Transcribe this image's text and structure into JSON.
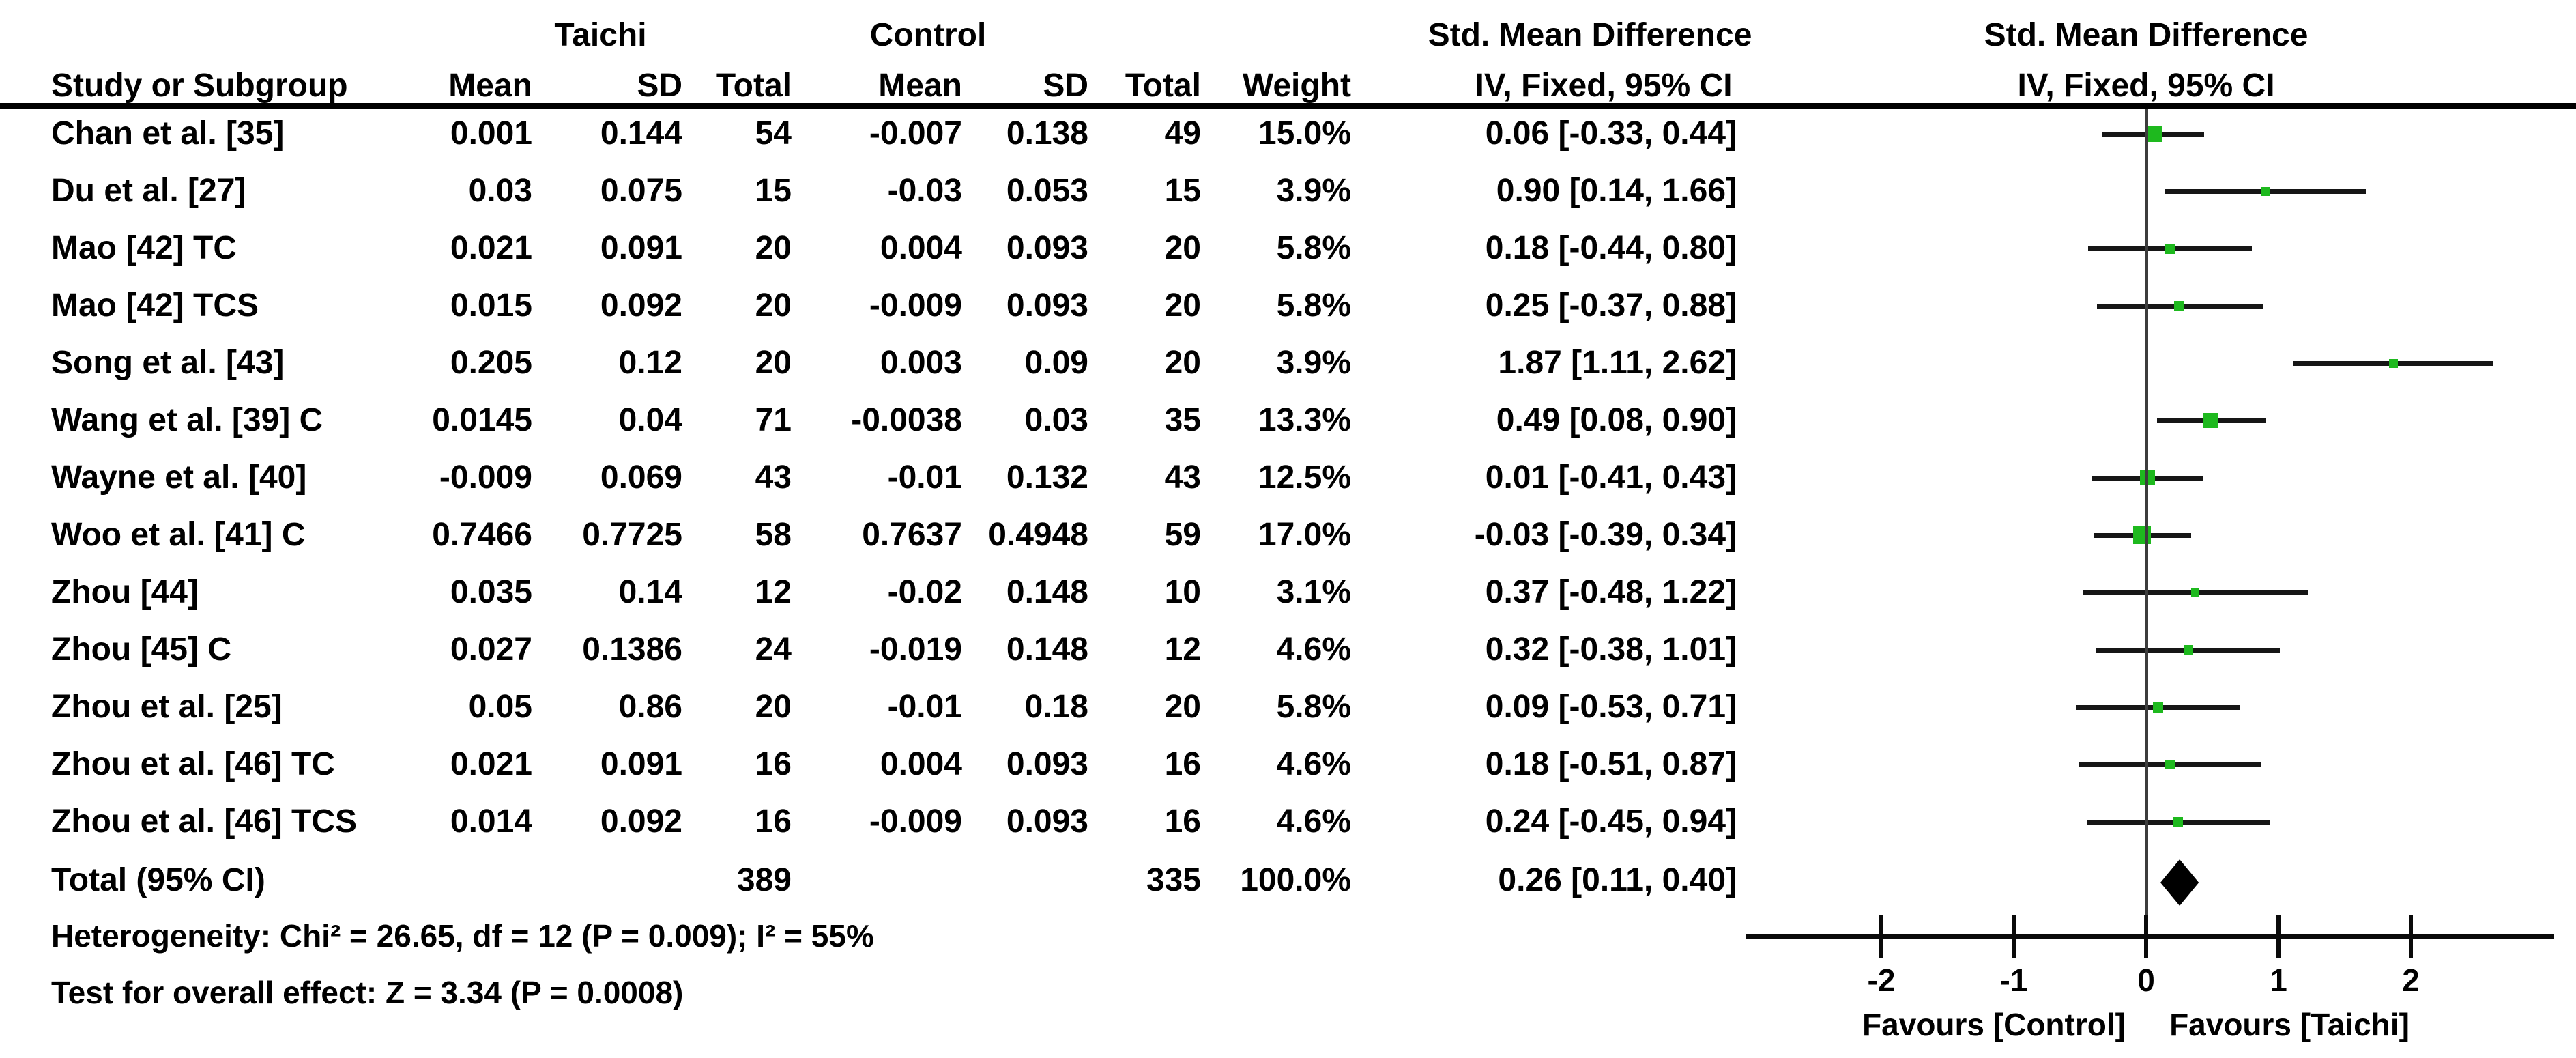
{
  "headers": {
    "group1": "Taichi",
    "group2": "Control",
    "effect": "Std. Mean Difference",
    "effect_method": "IV, Fixed, 95% CI",
    "plot_effect": "Std. Mean Difference",
    "plot_method": "IV, Fixed, 95% CI",
    "study": "Study or Subgroup",
    "mean1": "Mean",
    "sd1": "SD",
    "total1": "Total",
    "mean2": "Mean",
    "sd2": "SD",
    "total2": "Total",
    "weight": "Weight"
  },
  "studies": [
    {
      "label": "Chan et al. [35]",
      "t_mean": "0.001",
      "t_sd": "0.144",
      "t_total": "54",
      "c_mean": "-0.007",
      "c_sd": "0.138",
      "c_total": "49",
      "weight": "15.0%",
      "ci": "0.06 [-0.33, 0.44]",
      "est": 0.06,
      "lo": -0.33,
      "hi": 0.44,
      "w": 15.0
    },
    {
      "label": "Du et al. [27]",
      "t_mean": "0.03",
      "t_sd": "0.075",
      "t_total": "15",
      "c_mean": "-0.03",
      "c_sd": "0.053",
      "c_total": "15",
      "weight": "3.9%",
      "ci": "0.90 [0.14, 1.66]",
      "est": 0.9,
      "lo": 0.14,
      "hi": 1.66,
      "w": 3.9
    },
    {
      "label": "Mao [42] TC",
      "t_mean": "0.021",
      "t_sd": "0.091",
      "t_total": "20",
      "c_mean": "0.004",
      "c_sd": "0.093",
      "c_total": "20",
      "weight": "5.8%",
      "ci": "0.18 [-0.44, 0.80]",
      "est": 0.18,
      "lo": -0.44,
      "hi": 0.8,
      "w": 5.8
    },
    {
      "label": "Mao [42] TCS",
      "t_mean": "0.015",
      "t_sd": "0.092",
      "t_total": "20",
      "c_mean": "-0.009",
      "c_sd": "0.093",
      "c_total": "20",
      "weight": "5.8%",
      "ci": "0.25 [-0.37, 0.88]",
      "est": 0.25,
      "lo": -0.37,
      "hi": 0.88,
      "w": 5.8
    },
    {
      "label": "Song et al. [43]",
      "t_mean": "0.205",
      "t_sd": "0.12",
      "t_total": "20",
      "c_mean": "0.003",
      "c_sd": "0.09",
      "c_total": "20",
      "weight": "3.9%",
      "ci": "1.87 [1.11, 2.62]",
      "est": 1.87,
      "lo": 1.11,
      "hi": 2.62,
      "w": 3.9
    },
    {
      "label": "Wang et al. [39] C",
      "t_mean": "0.0145",
      "t_sd": "0.04",
      "t_total": "71",
      "c_mean": "-0.0038",
      "c_sd": "0.03",
      "c_total": "35",
      "weight": "13.3%",
      "ci": "0.49 [0.08, 0.90]",
      "est": 0.49,
      "lo": 0.08,
      "hi": 0.9,
      "w": 13.3
    },
    {
      "label": "Wayne et al. [40]",
      "t_mean": "-0.009",
      "t_sd": "0.069",
      "t_total": "43",
      "c_mean": "-0.01",
      "c_sd": "0.132",
      "c_total": "43",
      "weight": "12.5%",
      "ci": "0.01 [-0.41, 0.43]",
      "est": 0.01,
      "lo": -0.41,
      "hi": 0.43,
      "w": 12.5
    },
    {
      "label": "Woo et al. [41] C",
      "t_mean": "0.7466",
      "t_sd": "0.7725",
      "t_total": "58",
      "c_mean": "0.7637",
      "c_sd": "0.4948",
      "c_total": "59",
      "weight": "17.0%",
      "ci": "-0.03 [-0.39, 0.34]",
      "est": -0.03,
      "lo": -0.39,
      "hi": 0.34,
      "w": 17.0
    },
    {
      "label": "Zhou [44]",
      "t_mean": "0.035",
      "t_sd": "0.14",
      "t_total": "12",
      "c_mean": "-0.02",
      "c_sd": "0.148",
      "c_total": "10",
      "weight": "3.1%",
      "ci": "0.37 [-0.48, 1.22]",
      "est": 0.37,
      "lo": -0.48,
      "hi": 1.22,
      "w": 3.1
    },
    {
      "label": "Zhou [45] C",
      "t_mean": "0.027",
      "t_sd": "0.1386",
      "t_total": "24",
      "c_mean": "-0.019",
      "c_sd": "0.148",
      "c_total": "12",
      "weight": "4.6%",
      "ci": "0.32 [-0.38, 1.01]",
      "est": 0.32,
      "lo": -0.38,
      "hi": 1.01,
      "w": 4.6
    },
    {
      "label": "Zhou et al. [25]",
      "t_mean": "0.05",
      "t_sd": "0.86",
      "t_total": "20",
      "c_mean": "-0.01",
      "c_sd": "0.18",
      "c_total": "20",
      "weight": "5.8%",
      "ci": "0.09 [-0.53, 0.71]",
      "est": 0.09,
      "lo": -0.53,
      "hi": 0.71,
      "w": 5.8
    },
    {
      "label": "Zhou et al. [46] TC",
      "t_mean": "0.021",
      "t_sd": "0.091",
      "t_total": "16",
      "c_mean": "0.004",
      "c_sd": "0.093",
      "c_total": "16",
      "weight": "4.6%",
      "ci": "0.18 [-0.51, 0.87]",
      "est": 0.18,
      "lo": -0.51,
      "hi": 0.87,
      "w": 4.6
    },
    {
      "label": "Zhou et al. [46] TCS",
      "t_mean": "0.014",
      "t_sd": "0.092",
      "t_total": "16",
      "c_mean": "-0.009",
      "c_sd": "0.093",
      "c_total": "16",
      "weight": "4.6%",
      "ci": "0.24 [-0.45, 0.94]",
      "est": 0.24,
      "lo": -0.45,
      "hi": 0.94,
      "w": 4.6
    }
  ],
  "total": {
    "label": "Total (95% CI)",
    "t_total": "389",
    "c_total": "335",
    "weight": "100.0%",
    "ci": "0.26 [0.11, 0.40]",
    "est": 0.26,
    "lo": 0.11,
    "hi": 0.4
  },
  "footnotes": {
    "heterogeneity": "Heterogeneity: Chi² = 26.65, df = 12 (P = 0.009); I² = 55%",
    "overall_effect": "Test for overall effect: Z = 3.34 (P = 0.0008)"
  },
  "plot": {
    "ticks": [
      {
        "v": -2,
        "label": "-2"
      },
      {
        "v": -1,
        "label": "-1"
      },
      {
        "v": 0,
        "label": "0"
      },
      {
        "v": 1,
        "label": "1"
      },
      {
        "v": 2,
        "label": "2"
      }
    ],
    "favours_left": "Favours [Control]",
    "favours_right": "Favours [Taichi]",
    "marker_color": "#1eb91e",
    "diamond_color": "#000000",
    "xmin": -3.0,
    "xmax": 3.05
  },
  "chart_data": {
    "type": "scatter",
    "subtype": "forest_plot",
    "title": "Std. Mean Difference",
    "method": "IV, Fixed, 95% CI",
    "xlabel_left": "Favours [Control]",
    "xlabel_right": "Favours [Taichi]",
    "xlim": [
      -3,
      3
    ],
    "x_ticks": [
      -2,
      -1,
      0,
      1,
      2
    ],
    "categories": [
      "Chan et al. [35]",
      "Du et al. [27]",
      "Mao [42] TC",
      "Mao [42] TCS",
      "Song et al. [43]",
      "Wang et al. [39] C",
      "Wayne et al. [40]",
      "Woo et al. [41] C",
      "Zhou [44]",
      "Zhou [45] C",
      "Zhou et al. [25]",
      "Zhou et al. [46] TC",
      "Zhou et al. [46] TCS"
    ],
    "series": [
      {
        "name": "Std. Mean Difference (IV, Fixed, 95% CI)",
        "values": [
          0.06,
          0.9,
          0.18,
          0.25,
          1.87,
          0.49,
          0.01,
          -0.03,
          0.37,
          0.32,
          0.09,
          0.18,
          0.24
        ],
        "ci_low": [
          -0.33,
          0.14,
          -0.44,
          -0.37,
          1.11,
          0.08,
          -0.41,
          -0.39,
          -0.48,
          -0.38,
          -0.53,
          -0.51,
          -0.45
        ],
        "ci_high": [
          0.44,
          1.66,
          0.8,
          0.88,
          2.62,
          0.9,
          0.43,
          0.34,
          1.22,
          1.01,
          0.71,
          0.87,
          0.94
        ],
        "weights_pct": [
          15.0,
          3.9,
          5.8,
          5.8,
          3.9,
          13.3,
          12.5,
          17.0,
          3.1,
          4.6,
          5.8,
          4.6,
          4.6
        ]
      }
    ],
    "pooled": {
      "label": "Total (95% CI)",
      "value": 0.26,
      "ci_low": 0.11,
      "ci_high": 0.4,
      "taichi_n": 389,
      "control_n": 335,
      "weight_pct": 100.0
    },
    "heterogeneity": {
      "chi2": 26.65,
      "df": 12,
      "p": 0.009,
      "i2_pct": 55
    },
    "overall_effect": {
      "z": 3.34,
      "p": 0.0008
    },
    "legend_position": "none",
    "grid": false
  }
}
